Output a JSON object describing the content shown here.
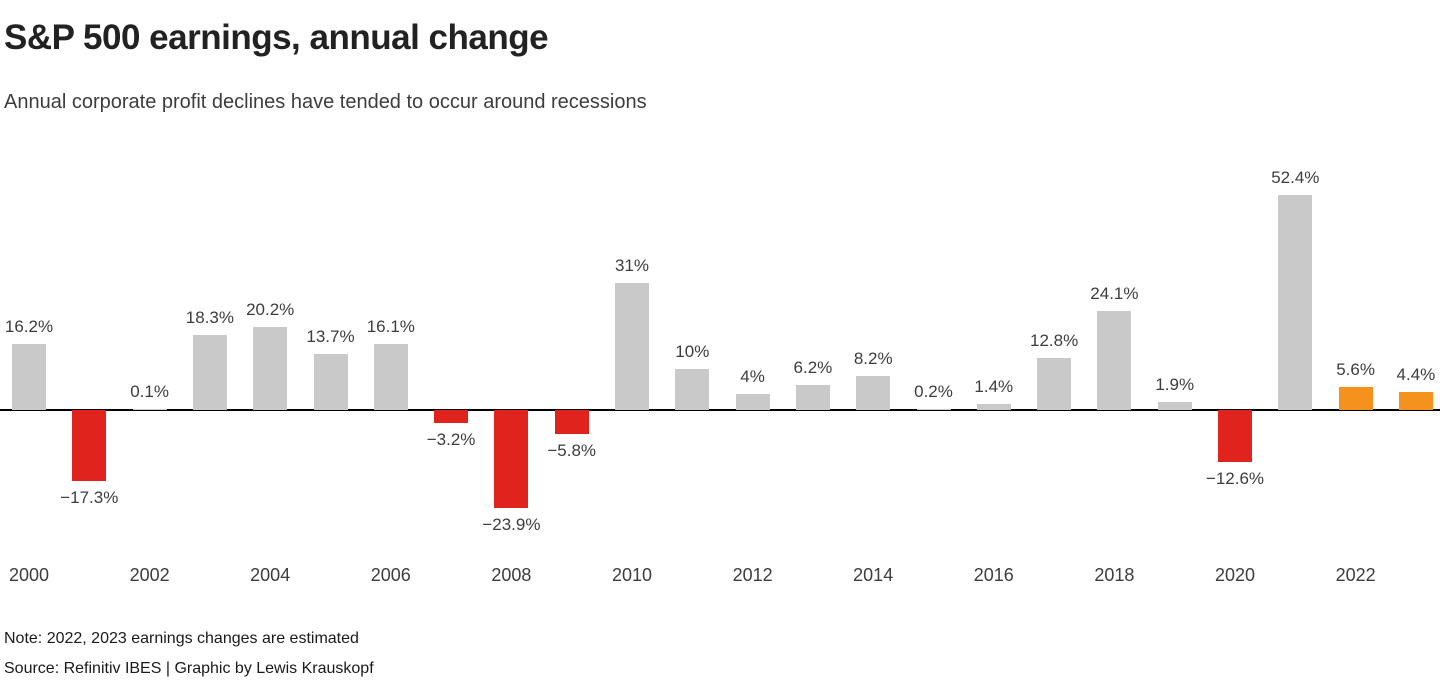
{
  "header": {
    "title": "S&P 500 earnings, annual change",
    "subtitle": "Annual corporate profit declines have tended to occur around recessions"
  },
  "footer": {
    "note": "Note: 2022, 2023 earnings changes are estimated",
    "source": "Source: Refinitiv IBES | Graphic by Lewis Krauskopf"
  },
  "chart_data": {
    "type": "bar",
    "title": "S&P 500 earnings, annual change",
    "subtitle": "Annual corporate profit declines have tended to occur around recessions",
    "x": [
      2000,
      2001,
      2002,
      2003,
      2004,
      2005,
      2006,
      2007,
      2008,
      2009,
      2010,
      2011,
      2012,
      2013,
      2014,
      2015,
      2016,
      2017,
      2018,
      2019,
      2020,
      2021,
      2022,
      2023
    ],
    "values": [
      16.2,
      -17.3,
      0.1,
      18.3,
      20.2,
      13.7,
      16.1,
      -3.2,
      -23.9,
      -5.8,
      31,
      10,
      4,
      6.2,
      8.2,
      0.2,
      1.4,
      12.8,
      24.1,
      1.9,
      -12.6,
      52.4,
      5.6,
      4.4
    ],
    "labels": [
      "16.2%",
      "−17.3%",
      "0.1%",
      "18.3%",
      "20.2%",
      "13.7%",
      "16.1%",
      "−3.2%",
      "−23.9%",
      "−5.8%",
      "31%",
      "10%",
      "4%",
      "6.2%",
      "8.2%",
      "0.2%",
      "1.4%",
      "12.8%",
      "24.1%",
      "1.9%",
      "−12.6%",
      "52.4%",
      "5.6%",
      "4.4%"
    ],
    "axis_tick_years": [
      "2000",
      "2002",
      "2004",
      "2006",
      "2008",
      "2010",
      "2012",
      "2014",
      "2016",
      "2018",
      "2020",
      "2022"
    ],
    "estimated_years": [
      2022,
      2023
    ],
    "ylim": [
      -30,
      60
    ],
    "grid": false,
    "legend": false,
    "xlabel": "",
    "ylabel": "",
    "colors": {
      "positive": "#c9c9c9",
      "negative": "#e0231c",
      "estimate": "#f5921e",
      "axis_line": "#000000",
      "label_text": "#3d3d3d"
    }
  }
}
